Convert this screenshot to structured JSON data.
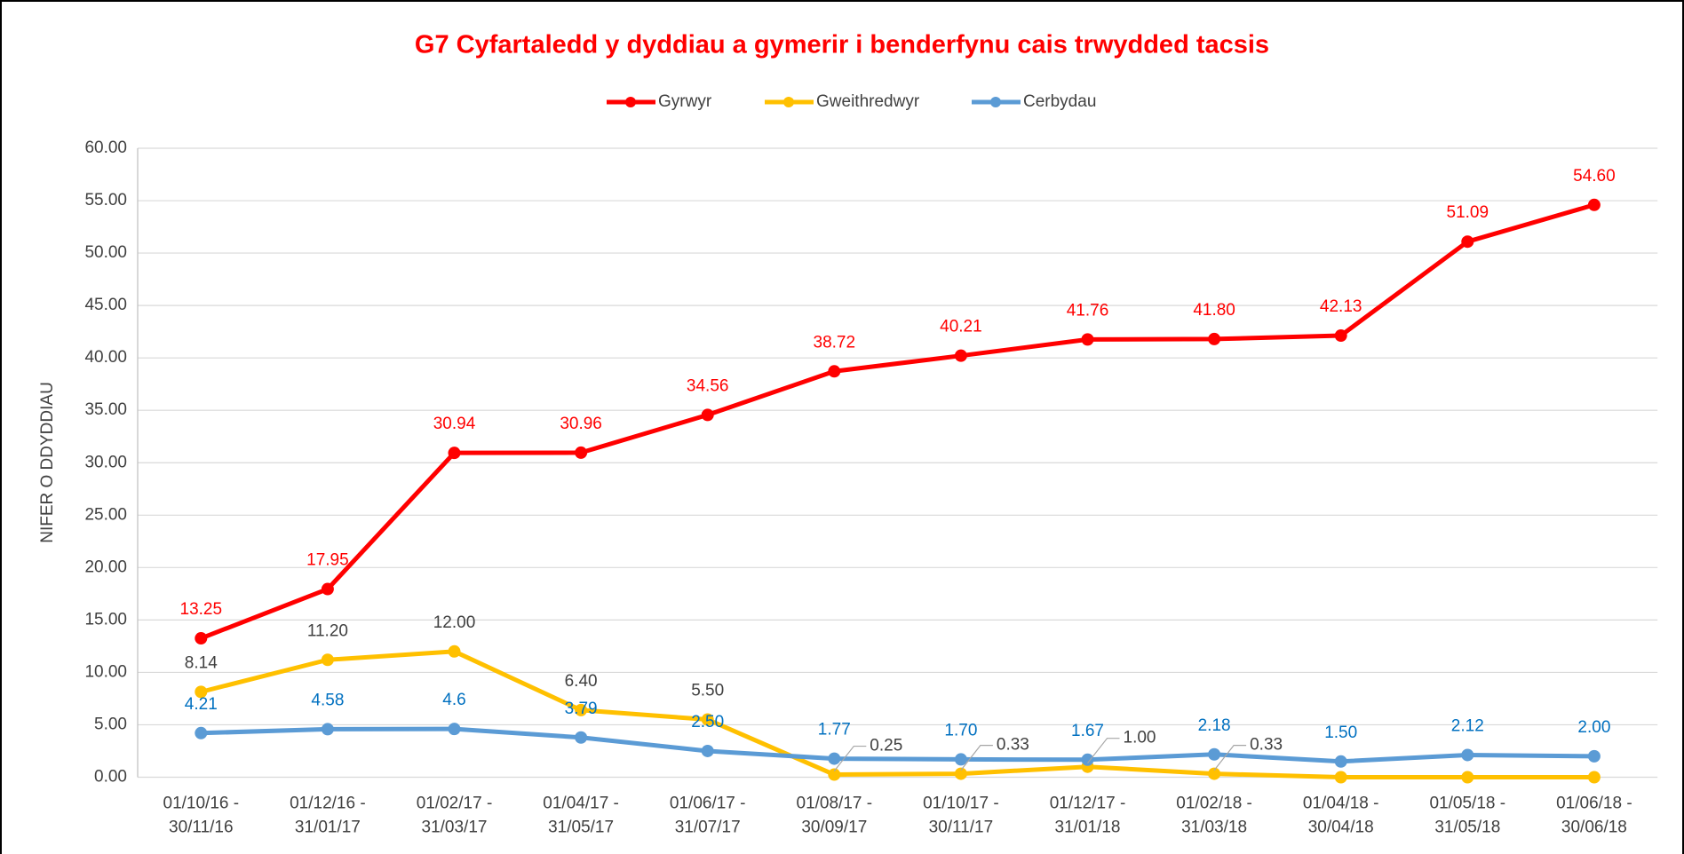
{
  "chart_data": {
    "type": "line",
    "title": "G7 Cyfartaledd y dyddiau a gymerir i benderfynu cais trwydded tacsis",
    "y_label": "NIFER O DDYDDIAU",
    "categories": [
      [
        "01/10/16 -",
        "30/11/16"
      ],
      [
        "01/12/16 -",
        "31/01/17"
      ],
      [
        "01/02/17 -",
        "31/03/17"
      ],
      [
        "01/04/17 -",
        "31/05/17"
      ],
      [
        "01/06/17 -",
        "31/07/17"
      ],
      [
        "01/08/17 -",
        "30/09/17"
      ],
      [
        "01/10/17 -",
        "30/11/17"
      ],
      [
        "01/12/17 -",
        "31/01/18"
      ],
      [
        "01/02/18 -",
        "31/03/18"
      ],
      [
        "01/04/18 -",
        "30/04/18"
      ],
      [
        "01/05/18 -",
        "31/05/18"
      ],
      [
        "01/06/18 -",
        "30/06/18"
      ]
    ],
    "series": [
      {
        "name": "Gyrwyr",
        "color": "#ff0000",
        "label_color": "#ff0000",
        "values": [
          13.25,
          17.95,
          30.94,
          30.96,
          34.56,
          38.72,
          40.21,
          41.76,
          41.8,
          42.13,
          51.09,
          54.6
        ],
        "value_labels": [
          "13.25",
          "17.95",
          "30.94",
          "30.96",
          "34.56",
          "38.72",
          "40.21",
          "41.76",
          "41.80",
          "42.13",
          "51.09",
          "54.60"
        ]
      },
      {
        "name": "Gweithredwyr",
        "color": "#ffc000",
        "label_color": "#404040",
        "values": [
          8.14,
          11.2,
          12.0,
          6.4,
          5.5,
          0.25,
          0.33,
          1.0,
          0.33,
          0,
          0,
          0
        ],
        "value_labels": [
          "8.14",
          "11.20",
          "12.00",
          "6.40",
          "5.50",
          "0.25",
          "0.33",
          "1.00",
          "0.33",
          null,
          null,
          null
        ]
      },
      {
        "name": "Cerbydau",
        "color": "#5b9bd5",
        "label_color": "#0070c0",
        "values": [
          4.21,
          4.58,
          4.6,
          3.79,
          2.5,
          1.77,
          1.7,
          1.67,
          2.18,
          1.5,
          2.12,
          2.0
        ],
        "value_labels": [
          "4.21",
          "4.58",
          "4.6",
          "3.79",
          "2.50",
          "1.77",
          "1.70",
          "1.67",
          "2.18",
          "1.50",
          "2.12",
          "2.00"
        ]
      }
    ],
    "ylim": [
      0,
      60
    ],
    "yticks": [
      {
        "value": 0,
        "label": "0.00"
      },
      {
        "value": 5,
        "label": "5.00"
      },
      {
        "value": 10,
        "label": "10.00"
      },
      {
        "value": 15,
        "label": "15.00"
      },
      {
        "value": 20,
        "label": "20.00"
      },
      {
        "value": 25,
        "label": "25.00"
      },
      {
        "value": 30,
        "label": "30.00"
      },
      {
        "value": 35,
        "label": "35.00"
      },
      {
        "value": 40,
        "label": "40.00"
      },
      {
        "value": 45,
        "label": "45.00"
      },
      {
        "value": 50,
        "label": "50.00"
      },
      {
        "value": 55,
        "label": "55.00"
      },
      {
        "value": 60,
        "label": "60.00"
      }
    ],
    "grid": true,
    "legend": "top"
  }
}
